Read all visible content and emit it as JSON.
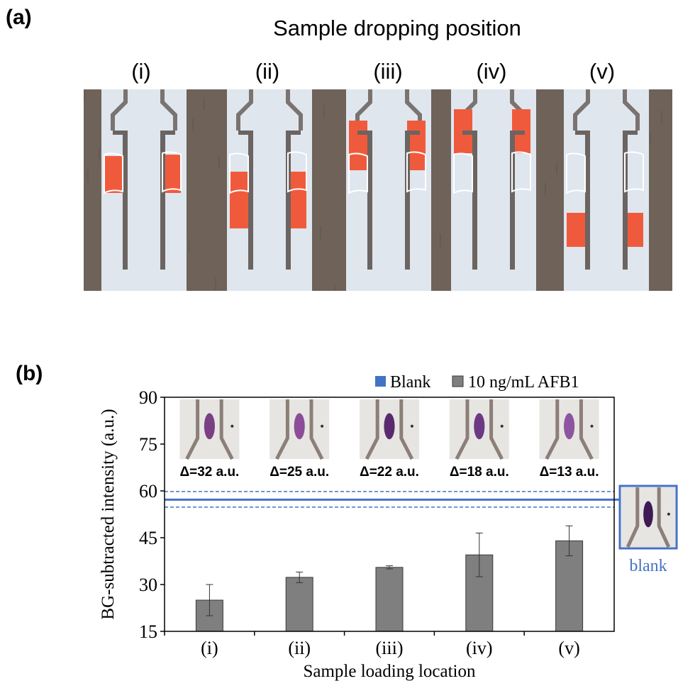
{
  "panel_a": {
    "label": "(a)",
    "title": "Sample dropping position",
    "positions": [
      "(i)",
      "(ii)",
      "(iii)",
      "(iv)",
      "(v)"
    ]
  },
  "panel_b": {
    "label": "(b)"
  },
  "colors": {
    "bar": "#7f7f7f",
    "blank": "#4472c4",
    "sample_red": "#f05a3c",
    "strip_bg": "#dfe6ee",
    "wood": "#6e6259"
  },
  "chart_data": {
    "type": "bar",
    "categories": [
      "(i)",
      "(ii)",
      "(iii)",
      "(iv)",
      "(v)"
    ],
    "series": [
      {
        "name": "10 ng/mL AFB1",
        "values": [
          25,
          32.3,
          35.5,
          39.5,
          44
        ],
        "errors": [
          5,
          1.7,
          0.5,
          7,
          4.8
        ]
      }
    ],
    "blank": {
      "name": "Blank",
      "value": 57.2,
      "upper": 59.8,
      "lower": 54.8
    },
    "annotations": [
      "Δ=32 a.u.",
      "Δ=25 a.u.",
      "Δ=22 a.u.",
      "Δ=18 a.u.",
      "Δ=13 a.u."
    ],
    "blank_inset_label": "blank",
    "xlabel": "Sample loading location",
    "ylabel": "BG-subtracted intensity (a.u.)",
    "ylim": [
      15,
      90
    ],
    "yticks": [
      15,
      30,
      45,
      60,
      75,
      90
    ],
    "legend": [
      "Blank",
      "10 ng/mL AFB1"
    ],
    "legend_position": "top-right",
    "grid": false
  }
}
